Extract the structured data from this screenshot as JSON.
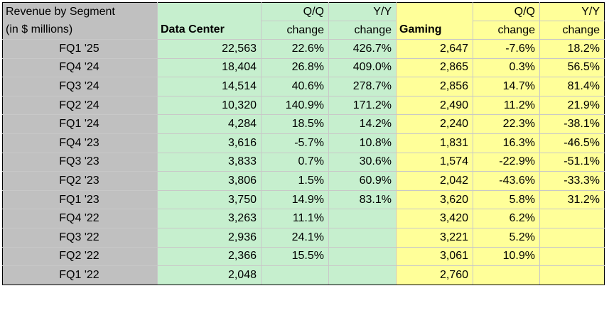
{
  "chart_data": {
    "type": "table",
    "title": "Revenue by Segment",
    "subtitle": "(in $ millions)",
    "columns": [
      {
        "name": "Data Center",
        "header_line1": "",
        "header_line2": "Data Center"
      },
      {
        "name": "Q/Q change",
        "header_line1": "Q/Q",
        "header_line2": "change"
      },
      {
        "name": "Y/Y change",
        "header_line1": "Y/Y",
        "header_line2": "change"
      },
      {
        "name": "Gaming",
        "header_line1": "",
        "header_line2": "Gaming"
      },
      {
        "name": "Q/Q change",
        "header_line1": "Q/Q",
        "header_line2": "change"
      },
      {
        "name": "Y/Y change",
        "header_line1": "Y/Y",
        "header_line2": "change"
      }
    ],
    "rows": [
      {
        "label": "FQ1 '25",
        "cells": [
          "22,563",
          "22.6%",
          "426.7%",
          "2,647",
          "-7.6%",
          "18.2%"
        ]
      },
      {
        "label": "FQ4 '24",
        "cells": [
          "18,404",
          "26.8%",
          "409.0%",
          "2,865",
          "0.3%",
          "56.5%"
        ]
      },
      {
        "label": "FQ3 '24",
        "cells": [
          "14,514",
          "40.6%",
          "278.7%",
          "2,856",
          "14.7%",
          "81.4%"
        ]
      },
      {
        "label": "FQ2 '24",
        "cells": [
          "10,320",
          "140.9%",
          "171.2%",
          "2,490",
          "11.2%",
          "21.9%"
        ]
      },
      {
        "label": "FQ1 '24",
        "cells": [
          "4,284",
          "18.5%",
          "14.2%",
          "2,240",
          "22.3%",
          "-38.1%"
        ]
      },
      {
        "label": "FQ4 '23",
        "cells": [
          "3,616",
          "-5.7%",
          "10.8%",
          "1,831",
          "16.3%",
          "-46.5%"
        ]
      },
      {
        "label": "FQ3 '23",
        "cells": [
          "3,833",
          "0.7%",
          "30.6%",
          "1,574",
          "-22.9%",
          "-51.1%"
        ]
      },
      {
        "label": "FQ2 '23",
        "cells": [
          "3,806",
          "1.5%",
          "60.9%",
          "2,042",
          "-43.6%",
          "-33.3%"
        ]
      },
      {
        "label": "FQ1 '23",
        "cells": [
          "3,750",
          "14.9%",
          "83.1%",
          "3,620",
          "5.8%",
          "31.2%"
        ]
      },
      {
        "label": "FQ4 '22",
        "cells": [
          "3,263",
          "11.1%",
          "",
          "3,420",
          "6.2%",
          ""
        ]
      },
      {
        "label": "FQ3 '22",
        "cells": [
          "2,936",
          "24.1%",
          "",
          "3,221",
          "5.2%",
          ""
        ]
      },
      {
        "label": "FQ2 '22",
        "cells": [
          "2,366",
          "15.5%",
          "",
          "3,061",
          "10.9%",
          ""
        ]
      },
      {
        "label": "FQ1 '22",
        "cells": [
          "2,048",
          "",
          "",
          "2,760",
          "",
          ""
        ]
      }
    ]
  },
  "colors": {
    "label_bg": "#c0c0c0",
    "data_center_bg": "#c6efce",
    "gaming_bg": "#ffff99"
  }
}
